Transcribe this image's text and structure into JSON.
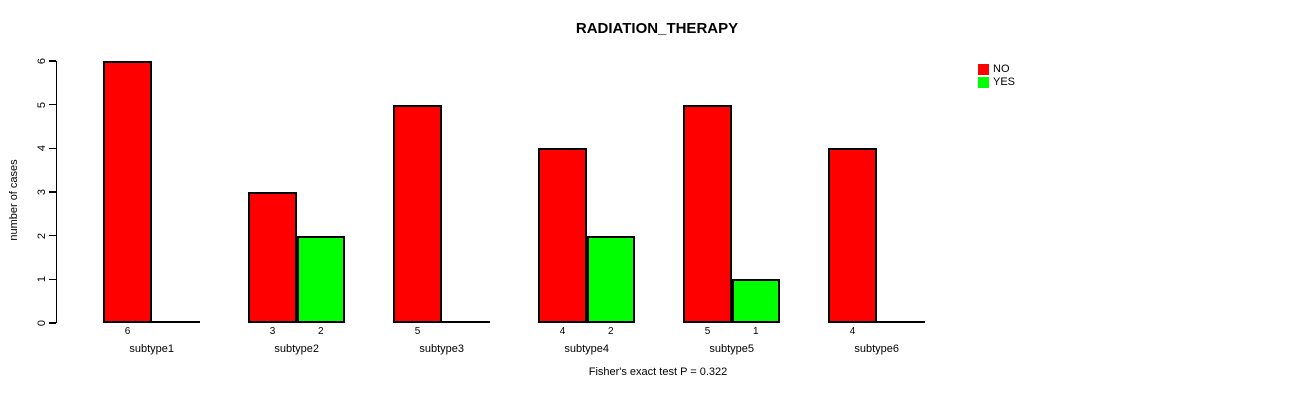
{
  "chart_data": {
    "type": "bar",
    "title": "RADIATION_THERAPY",
    "ylabel": "number of cases",
    "xlabel": "",
    "categories": [
      "subtype1",
      "subtype2",
      "subtype3",
      "subtype4",
      "subtype5",
      "subtype6"
    ],
    "series": [
      {
        "name": "NO",
        "color": "#ff0000",
        "values": [
          6,
          3,
          5,
          4,
          5,
          4
        ]
      },
      {
        "name": "YES",
        "color": "#00ff00",
        "values": [
          0,
          2,
          0,
          2,
          1,
          0
        ]
      }
    ],
    "ylim": [
      0,
      6
    ],
    "yticks": [
      0,
      1,
      2,
      3,
      4,
      5,
      6
    ],
    "grid": false,
    "legend_position": "top-right",
    "bar_value_labels": true,
    "footnote": "Fisher's exact test P = 0.322"
  },
  "colors": {
    "background": "#ffffff",
    "axis": "#000000",
    "text": "#000000"
  }
}
